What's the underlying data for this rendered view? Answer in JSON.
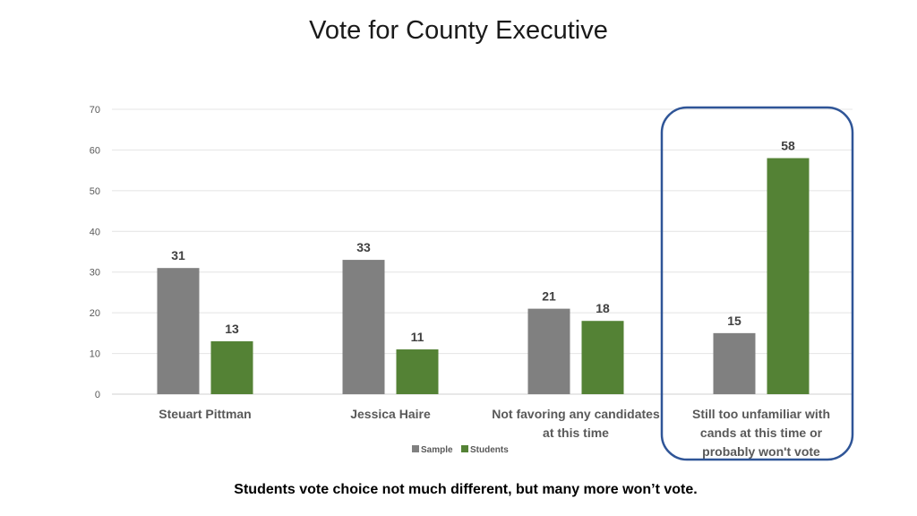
{
  "slide": {
    "title": "Vote for County Executive",
    "caption": "Students vote choice not much different, but many more won’t vote."
  },
  "chart_data": {
    "type": "bar",
    "categories": [
      [
        "Steuart Pittman"
      ],
      [
        "Jessica Haire"
      ],
      [
        "Not favoring any candidates",
        "at this time"
      ],
      [
        "Still too unfamiliar with",
        "cands at this time or",
        "probably won't vote"
      ]
    ],
    "series": [
      {
        "name": "Sample",
        "values": [
          31,
          33,
          21,
          15
        ],
        "color": "#808080"
      },
      {
        "name": "Students",
        "values": [
          13,
          11,
          18,
          58
        ],
        "color": "#548235"
      }
    ],
    "ylim": [
      0,
      70
    ],
    "yticks": [
      0,
      10,
      20,
      30,
      40,
      50,
      60,
      70
    ],
    "grid": true,
    "legend": "bottom",
    "highlight": {
      "category_index": 3,
      "color": "#2f5597"
    }
  }
}
